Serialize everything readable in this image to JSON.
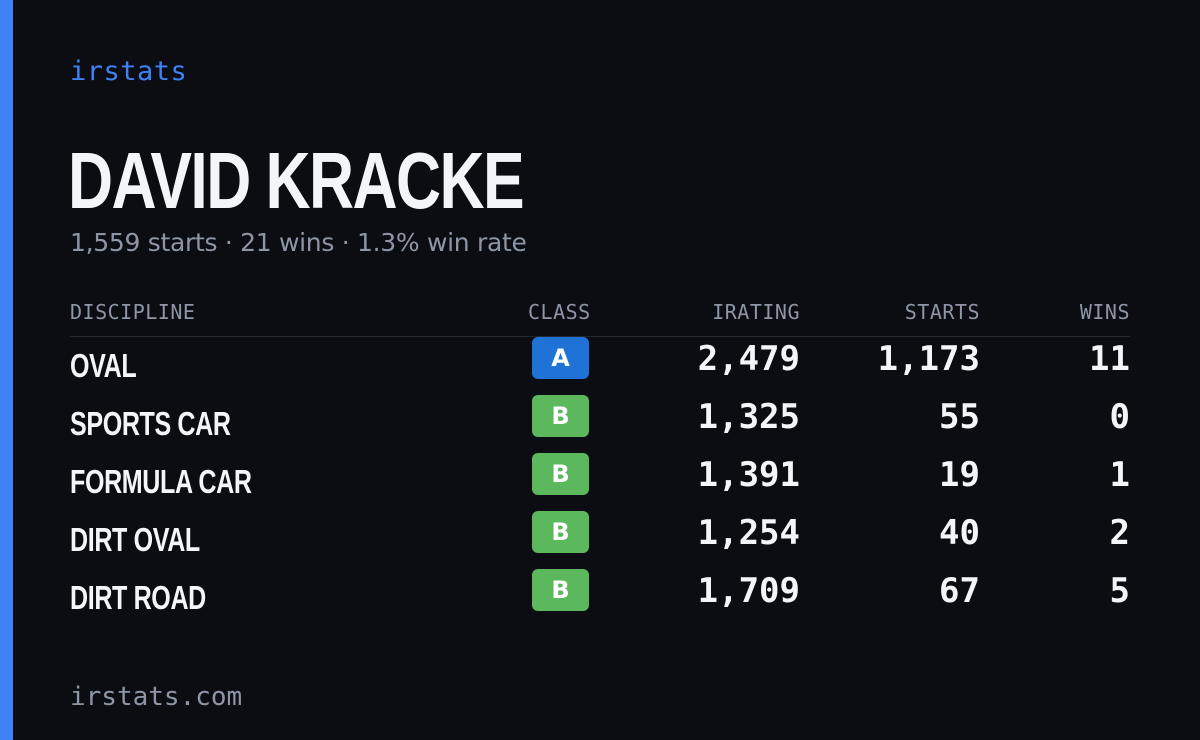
{
  "brand": "irstats",
  "driver": {
    "name": "DAVID KRACKE",
    "starts_text": "1,559 starts",
    "wins_text": "21 wins",
    "winrate_text": "1.3% win rate",
    "separator": "·"
  },
  "table": {
    "headers": {
      "discipline": "DISCIPLINE",
      "class": "CLASS",
      "irating": "IRATING",
      "starts": "STARTS",
      "wins": "WINS"
    },
    "rows": [
      {
        "discipline": "OVAL",
        "class": "A",
        "irating": "2,479",
        "starts": "1,173",
        "wins": "11"
      },
      {
        "discipline": "SPORTS CAR",
        "class": "B",
        "irating": "1,325",
        "starts": "55",
        "wins": "0"
      },
      {
        "discipline": "FORMULA CAR",
        "class": "B",
        "irating": "1,391",
        "starts": "19",
        "wins": "1"
      },
      {
        "discipline": "DIRT OVAL",
        "class": "B",
        "irating": "1,254",
        "starts": "40",
        "wins": "2"
      },
      {
        "discipline": "DIRT ROAD",
        "class": "B",
        "irating": "1,709",
        "starts": "67",
        "wins": "5"
      }
    ]
  },
  "class_colors": {
    "A": "#1f72d6",
    "B": "#5cb85c"
  },
  "footer": "irstats.com",
  "colors": {
    "accent": "#3e82f6",
    "background": "#0b0d13",
    "muted_text": "#8e96a6"
  }
}
